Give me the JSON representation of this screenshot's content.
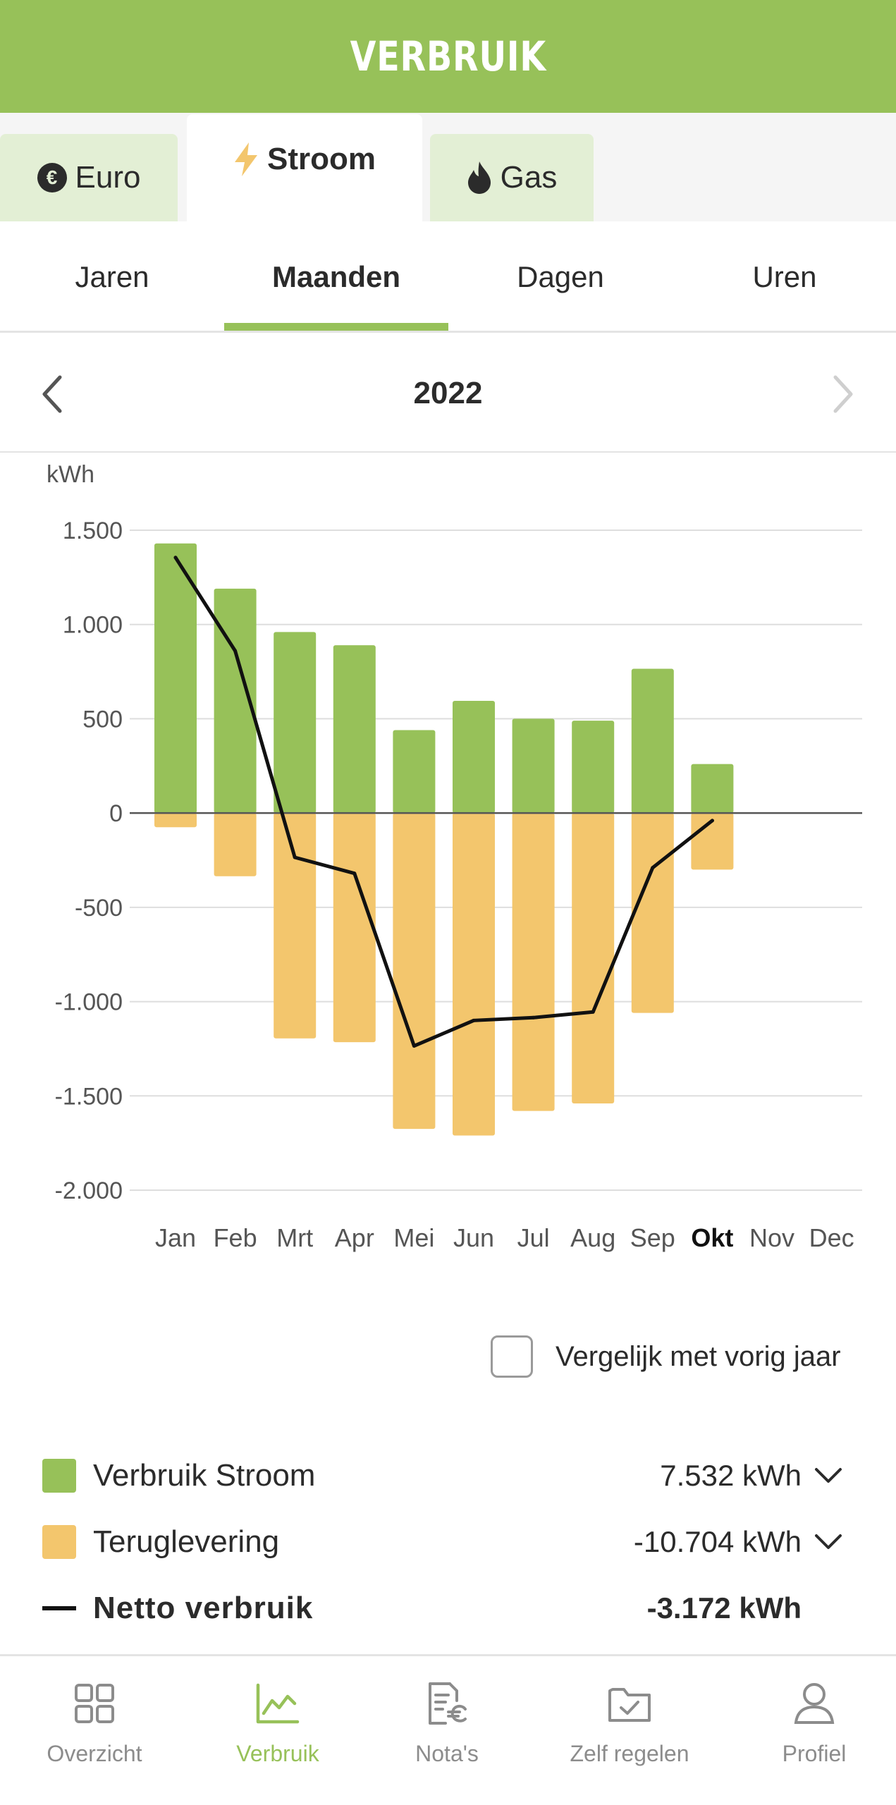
{
  "header": {
    "title": "VERBRUIK"
  },
  "energy_tabs": [
    {
      "label": "Euro",
      "icon": "euro-icon",
      "active": false
    },
    {
      "label": "Stroom",
      "icon": "lightning-icon",
      "active": true
    },
    {
      "label": "Gas",
      "icon": "flame-icon",
      "active": false
    }
  ],
  "period_tabs": [
    {
      "label": "Jaren",
      "active": false
    },
    {
      "label": "Maanden",
      "active": true
    },
    {
      "label": "Dagen",
      "active": false
    },
    {
      "label": "Uren",
      "active": false
    }
  ],
  "year_nav": {
    "label": "2022",
    "prev_icon": "chevron-left-icon",
    "next_icon": "chevron-right-icon",
    "next_disabled": true
  },
  "chart_data": {
    "type": "bar",
    "ylabel": "kWh",
    "ylim": [
      -2000,
      1500
    ],
    "yticks": [
      1500,
      1000,
      500,
      0,
      -500,
      -1000,
      -1500,
      -2000
    ],
    "ytick_labels": [
      "1.500",
      "1.000",
      "500",
      "0",
      "-500",
      "-1.000",
      "-1.500",
      "-2.000"
    ],
    "categories": [
      "Jan",
      "Feb",
      "Mrt",
      "Apr",
      "Mei",
      "Jun",
      "Jul",
      "Aug",
      "Sep",
      "Okt",
      "Nov",
      "Dec"
    ],
    "highlight_category": "Okt",
    "grid": true,
    "colors": {
      "consumption": "#97c159",
      "return": "#f3c66d",
      "net": "#111111"
    },
    "series": [
      {
        "name": "Verbruik Stroom",
        "kind": "bar",
        "values": [
          1430,
          1190,
          960,
          890,
          440,
          595,
          500,
          490,
          765,
          260,
          null,
          null
        ]
      },
      {
        "name": "Teruglevering",
        "kind": "bar",
        "values": [
          -75,
          -335,
          -1195,
          -1215,
          -1675,
          -1710,
          -1580,
          -1540,
          -1060,
          -300,
          null,
          null
        ]
      },
      {
        "name": "Netto verbruik",
        "kind": "line",
        "values": [
          1355,
          860,
          -235,
          -320,
          -1235,
          -1100,
          -1085,
          -1055,
          -290,
          -40,
          null,
          null
        ]
      }
    ]
  },
  "compare": {
    "label": "Vergelijk met vorig jaar",
    "checked": false
  },
  "legend": [
    {
      "label": "Verbruik Stroom",
      "value": "7.532 kWh",
      "color": "#97c159",
      "type": "swatch",
      "expandable": true
    },
    {
      "label": "Teruglevering",
      "value": "-10.704 kWh",
      "color": "#f3c66d",
      "type": "swatch",
      "expandable": true
    },
    {
      "label": "Netto verbruik",
      "value": "-3.172 kWh",
      "color": "#111111",
      "type": "line",
      "expandable": false
    }
  ],
  "bottom_nav": [
    {
      "label": "Overzicht",
      "icon": "grid-icon",
      "active": false
    },
    {
      "label": "Verbruik",
      "icon": "chart-line-icon",
      "active": true
    },
    {
      "label": "Nota's",
      "icon": "invoice-euro-icon",
      "active": false
    },
    {
      "label": "Zelf regelen",
      "icon": "folder-check-icon",
      "active": false
    },
    {
      "label": "Profiel",
      "icon": "user-icon",
      "active": false
    }
  ]
}
